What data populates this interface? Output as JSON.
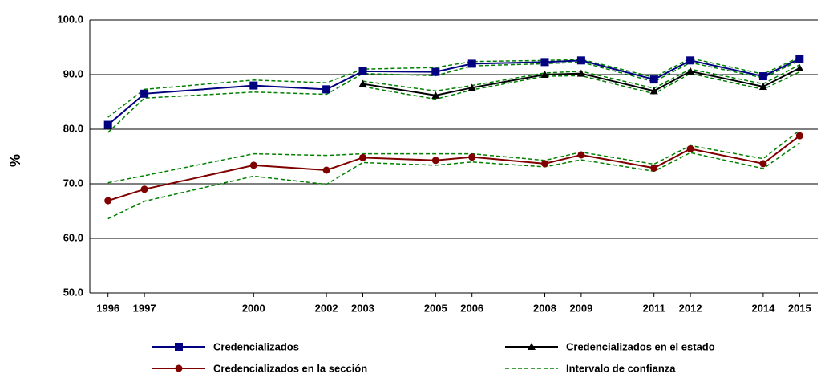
{
  "chart_data": {
    "type": "line",
    "y_label": "%",
    "x": [
      1996,
      1997,
      2000,
      2002,
      2003,
      2005,
      2006,
      2008,
      2009,
      2011,
      2012,
      2014,
      2015
    ],
    "xlim": [
      1995.5,
      2015.5
    ],
    "xticks": [
      1996,
      1997,
      2000,
      2002,
      2003,
      2005,
      2006,
      2008,
      2009,
      2011,
      2012,
      2014,
      2015
    ],
    "ylim": [
      50,
      100
    ],
    "yticks": [
      {
        "value": 50,
        "label": "50.0"
      },
      {
        "value": 60,
        "label": "60.0"
      },
      {
        "value": 70,
        "label": "70.0"
      },
      {
        "value": 80,
        "label": "80.0"
      },
      {
        "value": 90,
        "label": "90.0"
      },
      {
        "value": 100,
        "label": "100.0"
      }
    ],
    "grid": true,
    "series": [
      {
        "name": "Credencializados",
        "color": "#000080",
        "marker": "square",
        "values": [
          80.8,
          86.5,
          88.0,
          87.3,
          90.6,
          90.5,
          92.0,
          92.3,
          92.6,
          89.1,
          92.6,
          89.7,
          92.9
        ]
      },
      {
        "name": "Credencializados en el estado",
        "color": "#000000",
        "marker": "triangle",
        "values": [
          null,
          null,
          null,
          null,
          88.3,
          86.2,
          87.6,
          90.0,
          90.2,
          87.0,
          90.6,
          87.8,
          91.2
        ]
      },
      {
        "name": "Credencializados en la sección",
        "color": "#800000",
        "marker": "circle",
        "values": [
          66.9,
          69.0,
          73.4,
          72.5,
          74.8,
          74.3,
          74.9,
          73.7,
          75.3,
          72.9,
          76.4,
          73.7,
          78.8
        ]
      },
      {
        "name": "Intervalo de confianza",
        "color": "#008000",
        "dashed": true,
        "lines": [
          [
            82.2,
            87.3,
            89.0,
            88.5,
            91.0,
            91.3,
            92.4,
            92.6,
            92.8,
            89.5,
            93.0,
            90.1,
            93.2
          ],
          [
            79.4,
            85.7,
            86.8,
            86.4,
            90.2,
            89.8,
            91.6,
            92.0,
            92.3,
            88.7,
            92.2,
            89.4,
            92.6
          ],
          [
            null,
            null,
            null,
            null,
            88.8,
            87.0,
            88.0,
            90.3,
            90.6,
            87.5,
            91.0,
            88.3,
            91.8
          ],
          [
            null,
            null,
            null,
            null,
            87.8,
            85.5,
            87.2,
            89.7,
            89.8,
            86.5,
            90.2,
            87.3,
            90.5
          ],
          [
            70.2,
            71.5,
            75.5,
            75.2,
            75.5,
            75.5,
            75.5,
            74.3,
            75.8,
            73.6,
            77.0,
            74.6,
            79.8
          ],
          [
            63.6,
            66.8,
            71.4,
            69.9,
            73.9,
            73.4,
            74.0,
            73.1,
            74.4,
            72.3,
            75.7,
            72.8,
            77.5
          ]
        ]
      }
    ]
  }
}
